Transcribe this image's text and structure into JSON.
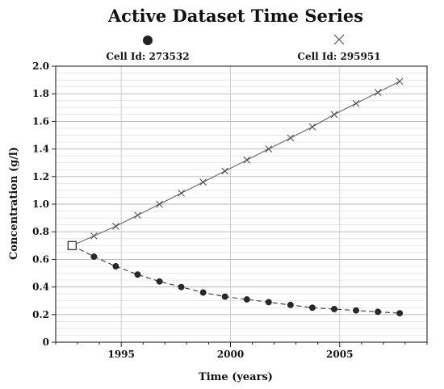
{
  "chart_data": {
    "type": "line",
    "title": "Active Dataset Time Series",
    "xlabel": "Time (years)",
    "ylabel": "Concentration (g/l)",
    "xlim": [
      1992,
      2009
    ],
    "ylim": [
      0,
      2.0
    ],
    "x_ticks": [
      "1995",
      "2000",
      "2005"
    ],
    "y_ticks": [
      "0",
      "0.2",
      "0.4",
      "0.6",
      "0.8",
      "1.0",
      "1.2",
      "1.4",
      "1.6",
      "1.8",
      "2.0"
    ],
    "grid": true,
    "legend_position": "top",
    "series": [
      {
        "name": "Cell Id: 273532",
        "marker": "filled-circle",
        "line_style": "dashed",
        "color": "#333333",
        "x": [
          1992.75,
          1993.75,
          1994.75,
          1995.75,
          1996.75,
          1997.75,
          1998.75,
          1999.75,
          2000.75,
          2001.75,
          2002.75,
          2003.75,
          2004.75,
          2005.75,
          2006.75,
          2007.75
        ],
        "values": [
          0.7,
          0.62,
          0.55,
          0.49,
          0.44,
          0.4,
          0.36,
          0.33,
          0.31,
          0.29,
          0.27,
          0.25,
          0.24,
          0.23,
          0.22,
          0.21
        ]
      },
      {
        "name": "Cell Id: 295951",
        "marker": "x",
        "line_style": "solid",
        "color": "#555555",
        "x": [
          1992.75,
          1993.75,
          1994.75,
          1995.75,
          1996.75,
          1997.75,
          1998.75,
          1999.75,
          2000.75,
          2001.75,
          2002.75,
          2003.75,
          2004.75,
          2005.75,
          2006.75,
          2007.75
        ],
        "values": [
          0.7,
          0.77,
          0.84,
          0.92,
          1.0,
          1.08,
          1.16,
          1.24,
          1.32,
          1.4,
          1.48,
          1.56,
          1.65,
          1.73,
          1.81,
          1.89
        ]
      }
    ]
  }
}
